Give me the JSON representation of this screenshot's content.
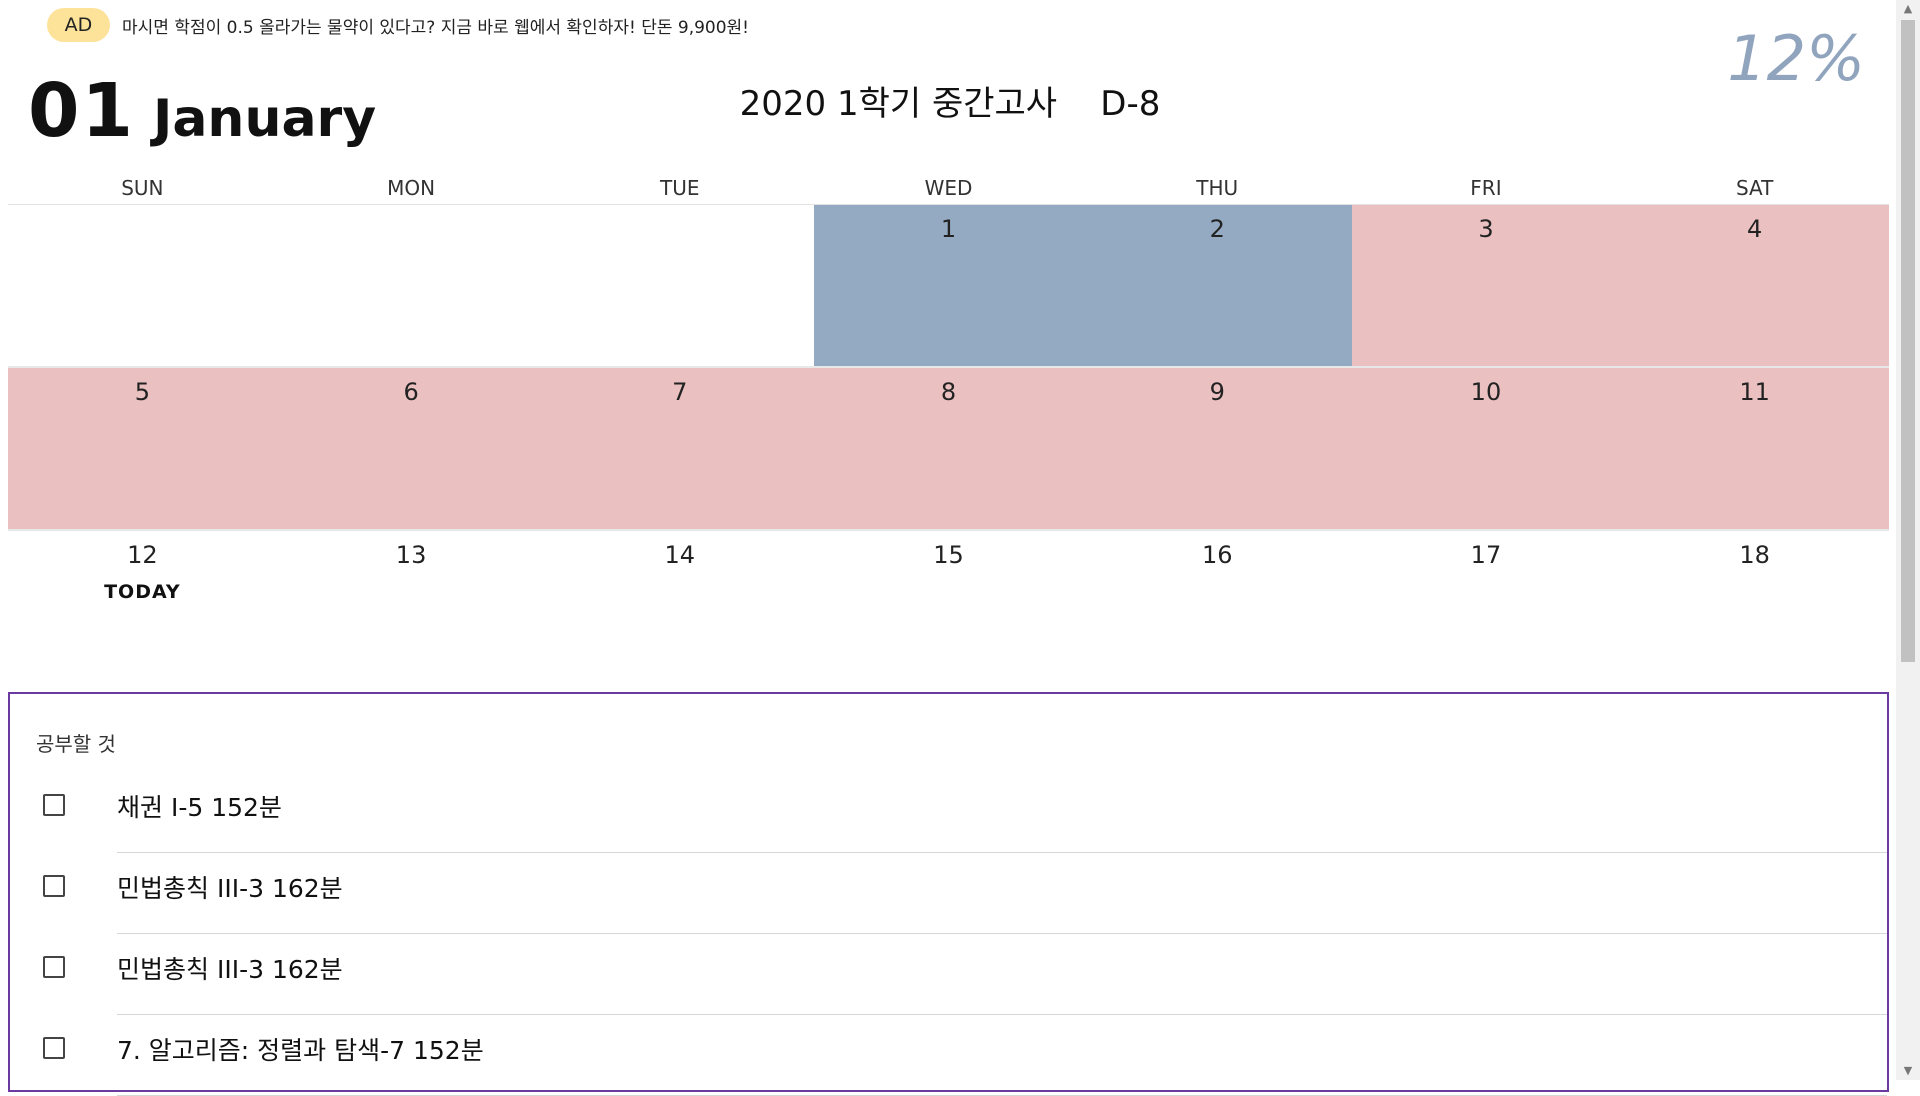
{
  "ad": {
    "badge": "AD",
    "text": "마시면 학점이 0.5 올라가는 물약이 있다고? 지금 바로 웹에서 확인하자! 단돈 9,900원!"
  },
  "header": {
    "day": "01",
    "month": "January",
    "exam_title": "2020 1학기 중간고사    D-8",
    "progress": "12%"
  },
  "calendar": {
    "weekdays": [
      "SUN",
      "MON",
      "TUE",
      "WED",
      "THU",
      "FRI",
      "SAT"
    ],
    "week1": [
      "",
      "",
      "",
      "1",
      "2",
      "3",
      "4"
    ],
    "week2": [
      "5",
      "6",
      "7",
      "8",
      "9",
      "10",
      "11"
    ],
    "week3": [
      "12",
      "13",
      "14",
      "15",
      "16",
      "17",
      "18"
    ],
    "today_label": "TODAY",
    "colors": {
      "blue": "#94aac2",
      "pink": "#eac0c0"
    }
  },
  "todo": {
    "title": "공부할 것",
    "items": [
      {
        "label": "채권 I-5 152분",
        "checked": false
      },
      {
        "label": "민법총칙 III-3 162분",
        "checked": false
      },
      {
        "label": "민법총칙 III-3 162분",
        "checked": false
      },
      {
        "label": "7. 알고리즘: 정렬과 탐색-7 152분",
        "checked": false
      }
    ]
  },
  "accent": "#6a3aa0"
}
